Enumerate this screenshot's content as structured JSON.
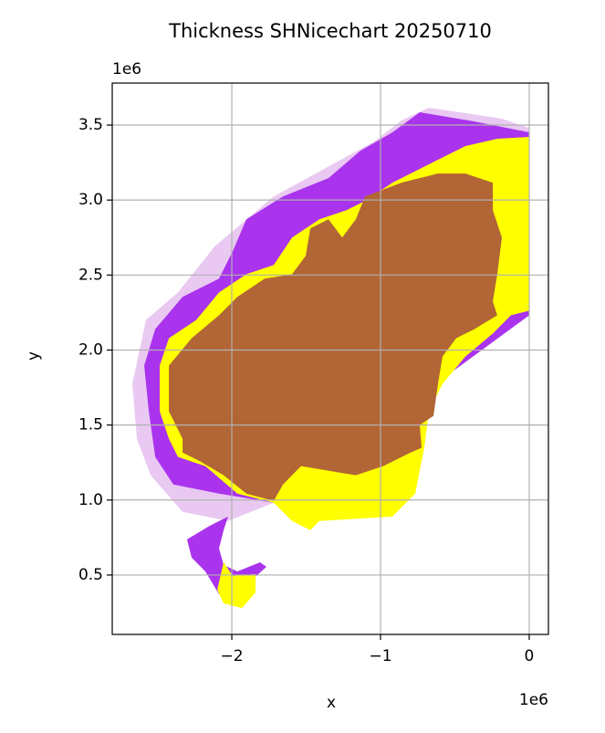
{
  "chart_data": {
    "type": "map",
    "title": "Thickness SHNicechart 20250710",
    "xlabel": "x",
    "ylabel": "y",
    "x_offset": "1e6",
    "y_offset": "1e6",
    "grid": true,
    "xlim": [
      -2804000,
      129000
    ],
    "ylim": [
      104000,
      3780000
    ],
    "xticks": [
      {
        "value": -2000000,
        "label": "−2"
      },
      {
        "value": -1000000,
        "label": "−1"
      },
      0
    ],
    "yticks": [
      {
        "value": 500000,
        "label": "0.5"
      },
      {
        "value": 1000000,
        "label": "1.0"
      },
      {
        "value": 1500000,
        "label": "1.5"
      },
      {
        "value": 2000000,
        "label": "2.0"
      },
      {
        "value": 2500000,
        "label": "2.5"
      },
      {
        "value": 3000000,
        "label": "3.0"
      },
      {
        "value": 3500000,
        "label": "3.5"
      }
    ],
    "polygons": [
      {
        "color": "#e9c9f2",
        "x": [
          0,
          -184000,
          -675000,
          -859000,
          -1043000,
          -1718000,
          -2117000,
          -2362000,
          -2577000,
          -2669000,
          -2638000,
          -2546000,
          -2331000,
          -2025000,
          -1718000,
          0
        ],
        "y": [
          3480000,
          3543000,
          3616000,
          3531000,
          3390000,
          3024000,
          2689000,
          2384000,
          2201000,
          1774000,
          1408000,
          1165000,
          921000,
          860000,
          982000,
          2232000
        ]
      },
      {
        "color": "#aa33ee",
        "x": [
          0,
          -368000,
          -736000,
          -920000,
          -1135000,
          -1350000,
          -1656000,
          -1902000,
          -1994000,
          -2086000,
          -2331000,
          -2515000,
          -2589000,
          -2558000,
          -2515000,
          -2393000,
          -2086000,
          -1718000,
          0
        ],
        "y": [
          3451000,
          3524000,
          3585000,
          3451000,
          3329000,
          3146000,
          3024000,
          2872000,
          2659000,
          2476000,
          2354000,
          2140000,
          1896000,
          1591000,
          1287000,
          1104000,
          1043000,
          982000,
          2232000
        ]
      },
      {
        "color": "#aa33ee",
        "x": [
          -2025000,
          -2147000,
          -2301000,
          -2270000,
          -2178000,
          -2086000,
          -1902000,
          -1767000,
          -1810000,
          -1963000,
          -2055000,
          -2086000,
          -2055000
        ],
        "y": [
          890000,
          829000,
          738000,
          616000,
          524000,
          372000,
          433000,
          555000,
          585000,
          524000,
          567000,
          677000,
          799000
        ]
      },
      {
        "color": "#ffff00",
        "x": [
          0,
          -215000,
          -429000,
          -675000,
          -920000,
          -1104000,
          -1227000,
          -1411000,
          -1595000,
          -1718000,
          -1902000,
          -2086000,
          -2239000,
          -2423000,
          -2485000,
          -2485000,
          -2423000,
          -2362000,
          -2178000,
          -1963000,
          -1718000,
          -1595000,
          -1472000,
          -1411000,
          -920000,
          -767000,
          -706000,
          -675000,
          -583000,
          -429000,
          -245000,
          -123000,
          0
        ],
        "y": [
          3421000,
          3409000,
          3360000,
          3238000,
          3116000,
          2994000,
          2933000,
          2872000,
          2750000,
          2567000,
          2506000,
          2384000,
          2201000,
          2079000,
          1896000,
          1591000,
          1408000,
          1287000,
          1226000,
          1043000,
          982000,
          860000,
          799000,
          860000,
          890000,
          1043000,
          1348000,
          1591000,
          1774000,
          1957000,
          2110000,
          2232000,
          2262000
        ]
      },
      {
        "color": "#ffff00",
        "x": [
          -2055000,
          -1994000,
          -1840000,
          -1840000,
          -1932000,
          -2055000,
          -2098000
        ],
        "y": [
          585000,
          494000,
          506000,
          384000,
          280000,
          311000,
          402000
        ]
      },
      {
        "color": "#b26535",
        "x": [
          -245000,
          -245000,
          -184000,
          -215000,
          -245000,
          -215000,
          -368000,
          -491000,
          -583000,
          -614000,
          -644000,
          -736000,
          -724000,
          -798000,
          -982000,
          -1166000,
          -1534000,
          -1656000,
          -1718000,
          -1902000,
          -2055000,
          -2209000,
          -2331000,
          -2331000,
          -2423000,
          -2423000,
          -2270000,
          -2086000,
          -1963000,
          -1779000,
          -1595000,
          -1503000,
          -1472000,
          -1350000,
          -1258000,
          -1166000,
          -1104000,
          -859000,
          -614000,
          -429000
        ],
        "y": [
          3116000,
          2933000,
          2750000,
          2506000,
          2323000,
          2232000,
          2140000,
          2079000,
          1957000,
          1774000,
          1561000,
          1500000,
          1348000,
          1317000,
          1226000,
          1165000,
          1226000,
          1104000,
          994000,
          1043000,
          1165000,
          1256000,
          1317000,
          1408000,
          1591000,
          1896000,
          2079000,
          2232000,
          2354000,
          2476000,
          2506000,
          2628000,
          2811000,
          2872000,
          2750000,
          2872000,
          3024000,
          3116000,
          3177000,
          3177000
        ]
      }
    ]
  }
}
